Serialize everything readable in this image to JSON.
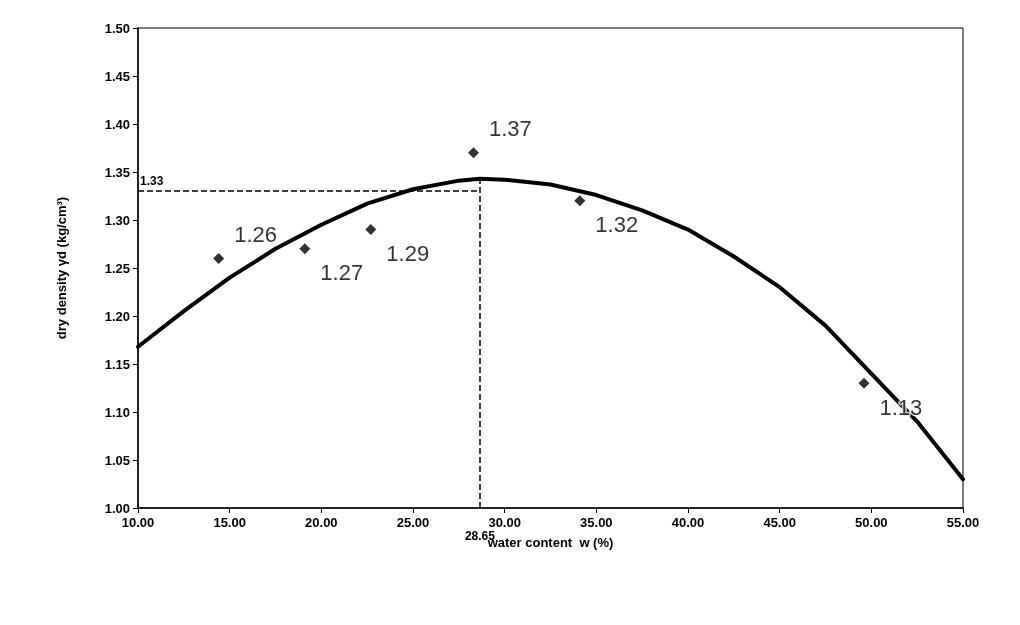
{
  "chart_data": {
    "type": "scatter",
    "xlabel": "water content  w (%)",
    "ylabel": "dry density γd (kg/cm³)",
    "xlim": [
      10,
      55
    ],
    "xticks": [
      {
        "value": 10,
        "label": "10.00"
      },
      {
        "value": 15,
        "label": "15.00"
      },
      {
        "value": 20,
        "label": "20.00"
      },
      {
        "value": 25,
        "label": "25.00"
      },
      {
        "value": 30,
        "label": "30.00"
      },
      {
        "value": 35,
        "label": "35.00"
      },
      {
        "value": 40,
        "label": "40.00"
      },
      {
        "value": 45,
        "label": "45.00"
      },
      {
        "value": 50,
        "label": "50.00"
      },
      {
        "value": 55,
        "label": "55.00"
      }
    ],
    "ylim": [
      1,
      1.5
    ],
    "yticks": [
      {
        "value": 1,
        "label": "1.00"
      },
      {
        "value": 1.05,
        "label": "1.05"
      },
      {
        "value": 1.1,
        "label": "1.10"
      },
      {
        "value": 1.15,
        "label": "1.15"
      },
      {
        "value": 1.2,
        "label": "1.20"
      },
      {
        "value": 1.25,
        "label": "1.25"
      },
      {
        "value": 1.3,
        "label": "1.30"
      },
      {
        "value": 1.35,
        "label": "1.35"
      },
      {
        "value": 1.4,
        "label": "1.40"
      },
      {
        "value": 1.45,
        "label": "1.45"
      },
      {
        "value": 1.5,
        "label": "1.50"
      }
    ],
    "series": [
      {
        "type": "scatter",
        "color": "#000000",
        "marker": "diamond",
        "data_labels": true,
        "x": [
          14.4,
          19.1,
          22.7,
          28.3,
          34.1,
          49.6
        ],
        "values": [
          1.26,
          1.27,
          1.29,
          1.37,
          1.32,
          1.13
        ]
      },
      {
        "type": "line",
        "color": "#000000",
        "marker": "none",
        "line_style": "solid",
        "x": [
          10,
          12.5,
          15,
          17.5,
          20,
          22.5,
          25,
          27.5,
          28.65,
          30,
          32.5,
          35,
          37.5,
          40,
          42.5,
          45,
          47.5,
          50,
          52.5,
          55
        ],
        "values": [
          1.168,
          1.205,
          1.24,
          1.27,
          1.295,
          1.317,
          1.332,
          1.341,
          1.343,
          1.342,
          1.337,
          1.326,
          1.31,
          1.29,
          1.262,
          1.23,
          1.19,
          1.14,
          1.09,
          1.03
        ]
      }
    ],
    "ref_lines": [
      {
        "axis": "y",
        "value": 1.33,
        "label": "1.33",
        "line_style": "dashed"
      },
      {
        "axis": "x",
        "value": 28.65,
        "label": "28.65",
        "line_style": "dashed"
      }
    ],
    "grid": false
  }
}
